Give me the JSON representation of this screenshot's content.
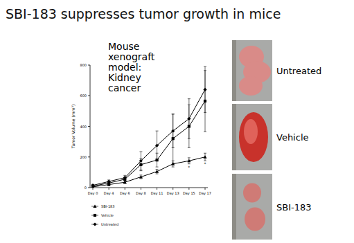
{
  "header": {
    "title": "SBI-183 suppresses tumor growth in mice"
  },
  "chart_data": {
    "type": "line",
    "annotation": "Mouse xenograft model: Kidney cancer",
    "y_label": "Tumor Volume (mm³)",
    "categories": [
      "Day 0",
      "Day 4",
      "Day 6",
      "Day 8",
      "Day 11",
      "Day 13",
      "Day 15",
      "Day 17"
    ],
    "ylim": [
      0,
      800
    ],
    "yticks": [
      0,
      200,
      400,
      600,
      800
    ],
    "grid": false,
    "legend": "bottom",
    "series": [
      {
        "name": "SBI-183",
        "color": "#000000",
        "marker": "triangle",
        "values": [
          5,
          20,
          35,
          70,
          105,
          155,
          175,
          200
        ],
        "errors": [
          3,
          5,
          8,
          12,
          15,
          20,
          20,
          25
        ],
        "significance": [
          null,
          null,
          null,
          null,
          null,
          null,
          "*",
          "*"
        ]
      },
      {
        "name": "Vehicle",
        "color": "#000000",
        "marker": "square",
        "values": [
          10,
          30,
          55,
          150,
          180,
          320,
          400,
          565
        ],
        "errors": [
          4,
          8,
          12,
          40,
          45,
          160,
          140,
          200
        ]
      },
      {
        "name": "Untreated",
        "color": "#000000",
        "marker": "diamond",
        "values": [
          15,
          40,
          65,
          175,
          275,
          370,
          450,
          640
        ],
        "errors": [
          5,
          10,
          15,
          60,
          95,
          110,
          130,
          150
        ]
      }
    ]
  },
  "photos": [
    {
      "label": "Untreated"
    },
    {
      "label": "Vehicle"
    },
    {
      "label": "SBI-183"
    }
  ]
}
